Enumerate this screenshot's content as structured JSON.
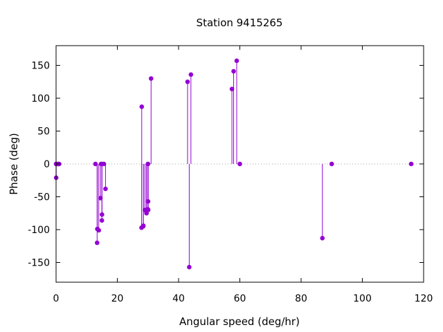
{
  "chart_data": {
    "type": "scatter",
    "style": "impulses-with-points",
    "title": "Station 9415265",
    "xlabel": "Angular speed (deg/hr)",
    "ylabel": "Phase (deg)",
    "xlim": [
      0,
      120
    ],
    "ylim": [
      -180,
      180
    ],
    "xticks": [
      0,
      20,
      40,
      60,
      80,
      100,
      120
    ],
    "yticks": [
      -150,
      -100,
      -50,
      0,
      50,
      100,
      150
    ],
    "grid": false,
    "zero_line": "dotted",
    "color": "#9400d3",
    "points": [
      {
        "x": 0.0,
        "y": 0
      },
      {
        "x": 0.04,
        "y": -21
      },
      {
        "x": 0.08,
        "y": 0
      },
      {
        "x": 0.54,
        "y": 0
      },
      {
        "x": 0.82,
        "y": 0
      },
      {
        "x": 1.0,
        "y": 0
      },
      {
        "x": 12.85,
        "y": 0
      },
      {
        "x": 13.4,
        "y": -120
      },
      {
        "x": 13.47,
        "y": -99
      },
      {
        "x": 13.94,
        "y": -101
      },
      {
        "x": 14.5,
        "y": -52
      },
      {
        "x": 14.7,
        "y": 0
      },
      {
        "x": 14.96,
        "y": -86
      },
      {
        "x": 15.0,
        "y": -77
      },
      {
        "x": 15.04,
        "y": 0
      },
      {
        "x": 15.6,
        "y": 0
      },
      {
        "x": 16.14,
        "y": -38
      },
      {
        "x": 27.97,
        "y": 87
      },
      {
        "x": 27.9,
        "y": -97
      },
      {
        "x": 28.44,
        "y": -95
      },
      {
        "x": 28.51,
        "y": -94
      },
      {
        "x": 28.99,
        "y": -70
      },
      {
        "x": 29.46,
        "y": -72
      },
      {
        "x": 29.53,
        "y": -75
      },
      {
        "x": 29.96,
        "y": -69
      },
      {
        "x": 30.0,
        "y": 0
      },
      {
        "x": 30.04,
        "y": -57
      },
      {
        "x": 30.08,
        "y": -70
      },
      {
        "x": 31.02,
        "y": 130
      },
      {
        "x": 42.93,
        "y": 125
      },
      {
        "x": 43.48,
        "y": -157
      },
      {
        "x": 44.03,
        "y": 136
      },
      {
        "x": 57.42,
        "y": 114
      },
      {
        "x": 57.97,
        "y": 141
      },
      {
        "x": 58.98,
        "y": 157
      },
      {
        "x": 60.0,
        "y": 0
      },
      {
        "x": 86.95,
        "y": -113
      },
      {
        "x": 90.0,
        "y": 0
      },
      {
        "x": 115.94,
        "y": 0
      }
    ]
  }
}
